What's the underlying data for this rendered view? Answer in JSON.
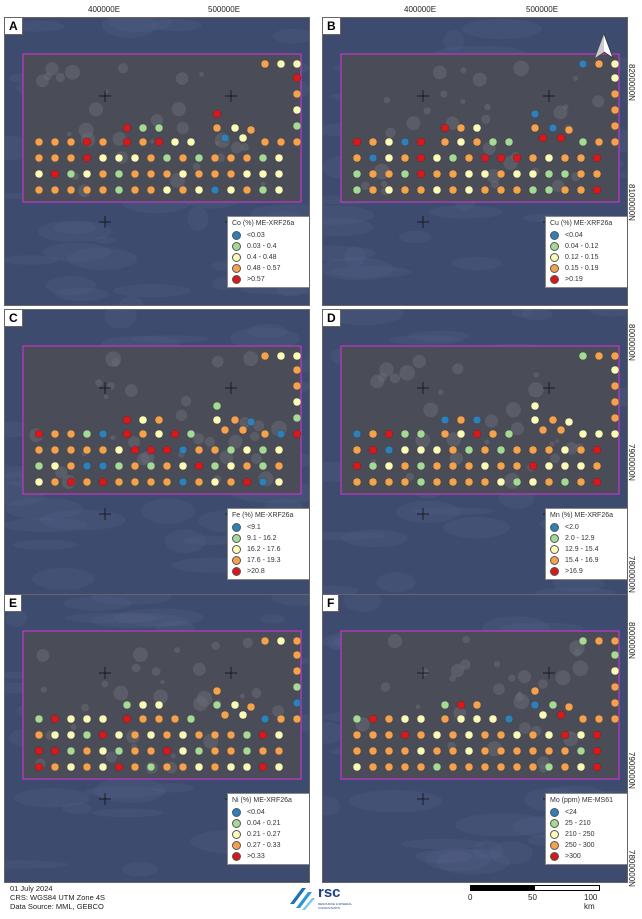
{
  "axis_labels": {
    "easting_left_1": "400000E",
    "easting_left_2": "500000E",
    "easting_right_1": "400000E",
    "easting_right_2": "500000E",
    "northing_1": "8200000N",
    "northing_2": "8100000N",
    "northing_3": "8000000N",
    "northing_4": "7900000N",
    "northing_5": "7800000N",
    "northing_6": "8000000N",
    "northing_7": "7900000N",
    "northing_8": "7800000N"
  },
  "panels": [
    {
      "letter": "A",
      "legend_title": "Co (%) ME-XRF26a",
      "classes": [
        "<0.03",
        "0.03 - 0.4",
        "0.4 - 0.48",
        "0.48 - 0.57",
        ">0.57"
      ]
    },
    {
      "letter": "B",
      "legend_title": "Cu (%) ME-XRF26a",
      "classes": [
        "<0.04",
        "0.04 - 0.12",
        "0.12 - 0.15",
        "0.15 - 0.19",
        ">0.19"
      ]
    },
    {
      "letter": "C",
      "legend_title": "Fe (%) ME-XRF26a",
      "classes": [
        "<9.1",
        "9.1 - 16.2",
        "16.2 - 17.6",
        "17.6 - 19.3",
        ">20.8"
      ]
    },
    {
      "letter": "D",
      "legend_title": "Mn (%) ME-XRF26a",
      "classes": [
        "<2.0",
        "2.0 - 12.9",
        "12.9 - 15.4",
        "15.4 - 16.9",
        ">16.9"
      ]
    },
    {
      "letter": "E",
      "legend_title": "Ni (%) ME-XRF26a",
      "classes": [
        "<0.04",
        "0.04 - 0.21",
        "0.21 - 0.27",
        "0.27 - 0.33",
        ">0.33"
      ]
    },
    {
      "letter": "F",
      "legend_title": "Mo (ppm) ME-MS61",
      "classes": [
        "<24",
        "25 - 210",
        "210 - 250",
        "250 - 300",
        ">300"
      ]
    }
  ],
  "class_colors": [
    "#2f7fb8",
    "#a6d896",
    "#fbfbb8",
    "#f4a24e",
    "#d7191c"
  ],
  "survey_box_color": "#c535c8",
  "north_arrow_label": "N",
  "footer": {
    "date": "01 July 2024",
    "crs": "CRS: WGS84 UTM Zone 4S",
    "source": "Data Source: MML, GEBCO"
  },
  "logo": {
    "text": "rsc",
    "subtext": "RESOURCE & MINERAL CONSULTANTS"
  },
  "scale": {
    "labels": [
      "0",
      "50",
      "100 km"
    ]
  }
}
